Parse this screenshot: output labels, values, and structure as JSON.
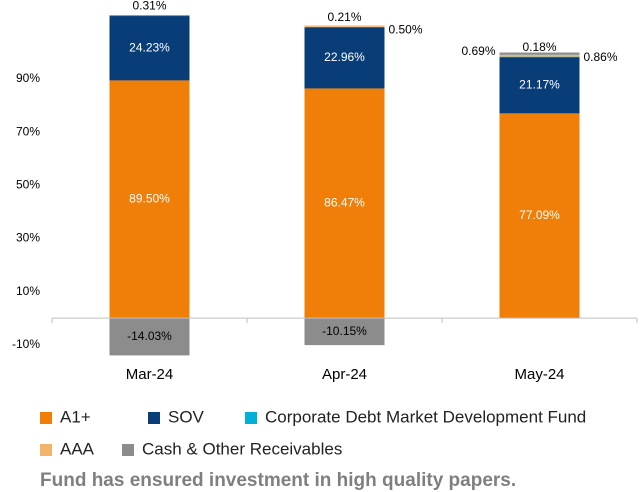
{
  "chart_data": {
    "type": "stacked_bar",
    "categories": [
      "Mar-24",
      "Apr-24",
      "May-24"
    ],
    "series": [
      {
        "name": "A1+",
        "color": "#f07f09",
        "values": [
          89.5,
          86.47,
          77.09
        ],
        "value_labels": [
          "89.50%",
          "86.47%",
          "77.09%"
        ]
      },
      {
        "name": "SOV",
        "color": "#083d77",
        "values": [
          24.23,
          22.96,
          21.17
        ],
        "value_labels": [
          "24.23%",
          "22.96%",
          "21.17%"
        ]
      },
      {
        "name": "Corporate Debt Market Development Fund",
        "color": "#00b0d8",
        "values": [
          0.31,
          0.21,
          0.18
        ],
        "value_labels": [
          "0.31%",
          "0.21%",
          "0.18%"
        ]
      },
      {
        "name": "AAA",
        "color": "#f2b56b",
        "values": [
          null,
          0.5,
          0.69
        ],
        "value_labels": [
          null,
          "0.50%",
          "0.69%"
        ]
      },
      {
        "name": "Cash & Other Receivables",
        "color": "#8c8c8c",
        "values": [
          -14.03,
          -10.15,
          0.86
        ],
        "value_labels": [
          "-14.03%",
          "-10.15%",
          "0.86%"
        ]
      }
    ],
    "ylim": [
      -15,
      116
    ],
    "yticks": [
      {
        "value": -10,
        "label": "-10%"
      },
      {
        "value": 10,
        "label": "10%"
      },
      {
        "value": 30,
        "label": "30%"
      },
      {
        "value": 50,
        "label": "50%"
      },
      {
        "value": 70,
        "label": "70%"
      },
      {
        "value": 90,
        "label": "90%"
      }
    ],
    "grid": false,
    "legend": "bottom",
    "footnote": "Fund has ensured investment in high quality papers."
  }
}
